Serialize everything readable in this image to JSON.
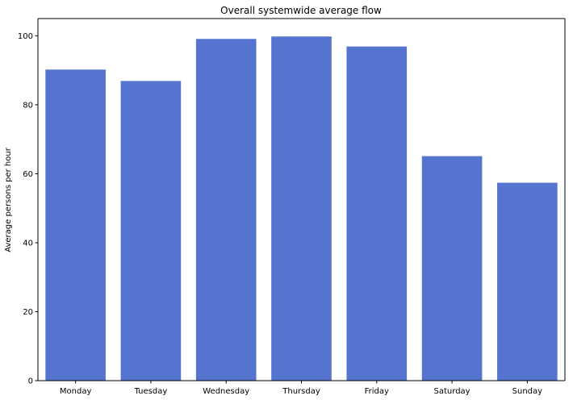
{
  "chart_data": {
    "type": "bar",
    "title": "Overall systemwide average flow",
    "xlabel": "",
    "ylabel": "Average persons per hour",
    "categories": [
      "Monday",
      "Tuesday",
      "Wednesday",
      "Thursday",
      "Friday",
      "Saturday",
      "Sunday"
    ],
    "values": [
      90.2,
      86.9,
      99.1,
      99.8,
      96.9,
      65.1,
      57.4
    ],
    "ylim": [
      0,
      105
    ],
    "yticks": [
      0,
      20,
      40,
      60,
      80,
      100
    ],
    "bar_color": "#5474d0",
    "grid": false,
    "legend": "none"
  }
}
